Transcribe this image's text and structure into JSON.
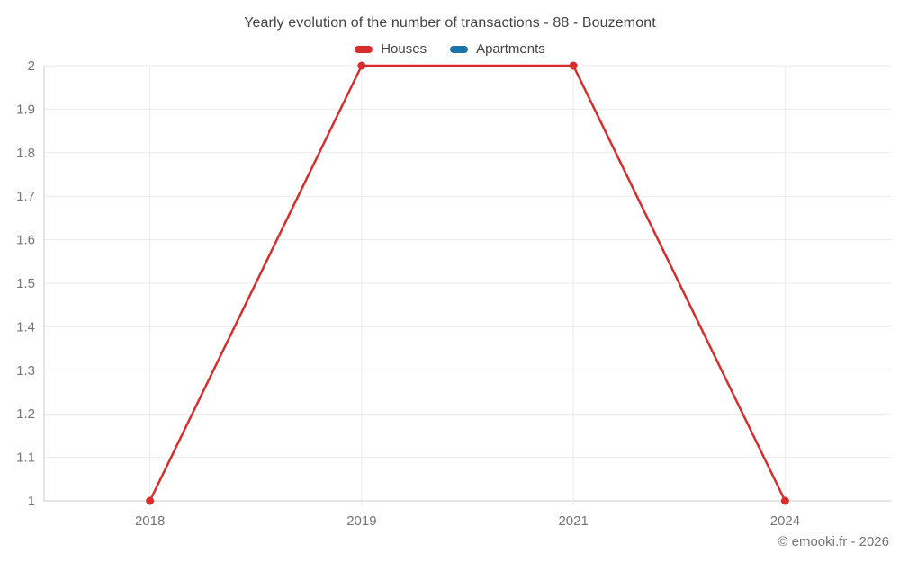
{
  "title": "Yearly evolution of the number of transactions - 88 - Bouzemont",
  "legend": {
    "items": [
      {
        "label": "Houses",
        "color": "#d62d2d"
      },
      {
        "label": "Apartments",
        "color": "#1c74a8"
      }
    ]
  },
  "chart_data": {
    "type": "line",
    "title": "Yearly evolution of the number of transactions - 88 - Bouzemont",
    "categories": [
      "2018",
      "2019",
      "2021",
      "2024"
    ],
    "series": [
      {
        "name": "Houses",
        "color": "#d62d2d",
        "values": [
          1,
          2,
          2,
          1
        ]
      },
      {
        "name": "Apartments",
        "color": "#1c74a8",
        "values": []
      }
    ],
    "xlabel": "",
    "ylabel": "",
    "ylim": [
      1,
      2
    ],
    "ytick_step": 0.1,
    "y_tick_labels": [
      "1",
      "1.1",
      "1.2",
      "1.3",
      "1.4",
      "1.5",
      "1.6",
      "1.7",
      "1.8",
      "1.9",
      "2"
    ],
    "grid": true,
    "legend_position": "top"
  },
  "footer": {
    "copyright": "© emooki.fr - 2026"
  },
  "colors": {
    "grid_line": "#ebebeb",
    "axis_line": "#cccccc",
    "tick_text": "#757575",
    "title_text": "#424242",
    "background": "#ffffff"
  }
}
